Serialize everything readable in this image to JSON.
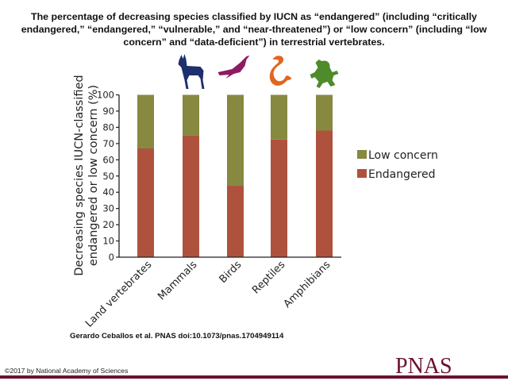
{
  "title": "The percentage of decreasing species classified by IUCN as “endangered” (including “critically endangered,” “endangered,” “vulnerable,” and “near-threatened”) or “low concern” (including “low concern” and “data-deficient”) in terrestrial vertebrates.",
  "citation": "Gerardo Ceballos et al. PNAS doi:10.1073/pnas.1704949114",
  "copyright": "©2017 by National Academy of Sciences",
  "brand": "PNAS",
  "colors": {
    "low_concern": "#86893f",
    "endangered": "#ae523d",
    "deer": "#1e2f6e",
    "bird": "#8f1a62",
    "snake": "#e0661f",
    "frog": "#4f8a2b",
    "brand": "#6b1230"
  },
  "icons": [
    "deer-icon",
    "bird-icon",
    "snake-icon",
    "frog-icon"
  ],
  "chart_data": {
    "type": "bar",
    "stacked": true,
    "title": "",
    "xlabel": "",
    "ylabel": "Decreasing species IUCN-classified endangered or low concern (%)",
    "ylabel_lines": [
      "Decreasing species IUCN-classified",
      "endangered or low concern (%)"
    ],
    "ylim": [
      0,
      100
    ],
    "yticks": [
      0,
      10,
      20,
      30,
      40,
      50,
      60,
      70,
      80,
      90,
      100
    ],
    "categories": [
      "Land vertebrates",
      "Mammals",
      "Birds",
      "Reptiles",
      "Amphibians"
    ],
    "series": [
      {
        "name": "Endangered",
        "values": [
          67,
          75,
          44,
          72.5,
          78
        ]
      },
      {
        "name": "Low concern",
        "values": [
          33,
          25,
          56,
          27.5,
          22
        ]
      }
    ],
    "legend": {
      "entries": [
        "Low concern",
        "Endangered"
      ],
      "placement": "right"
    },
    "grid": false
  }
}
